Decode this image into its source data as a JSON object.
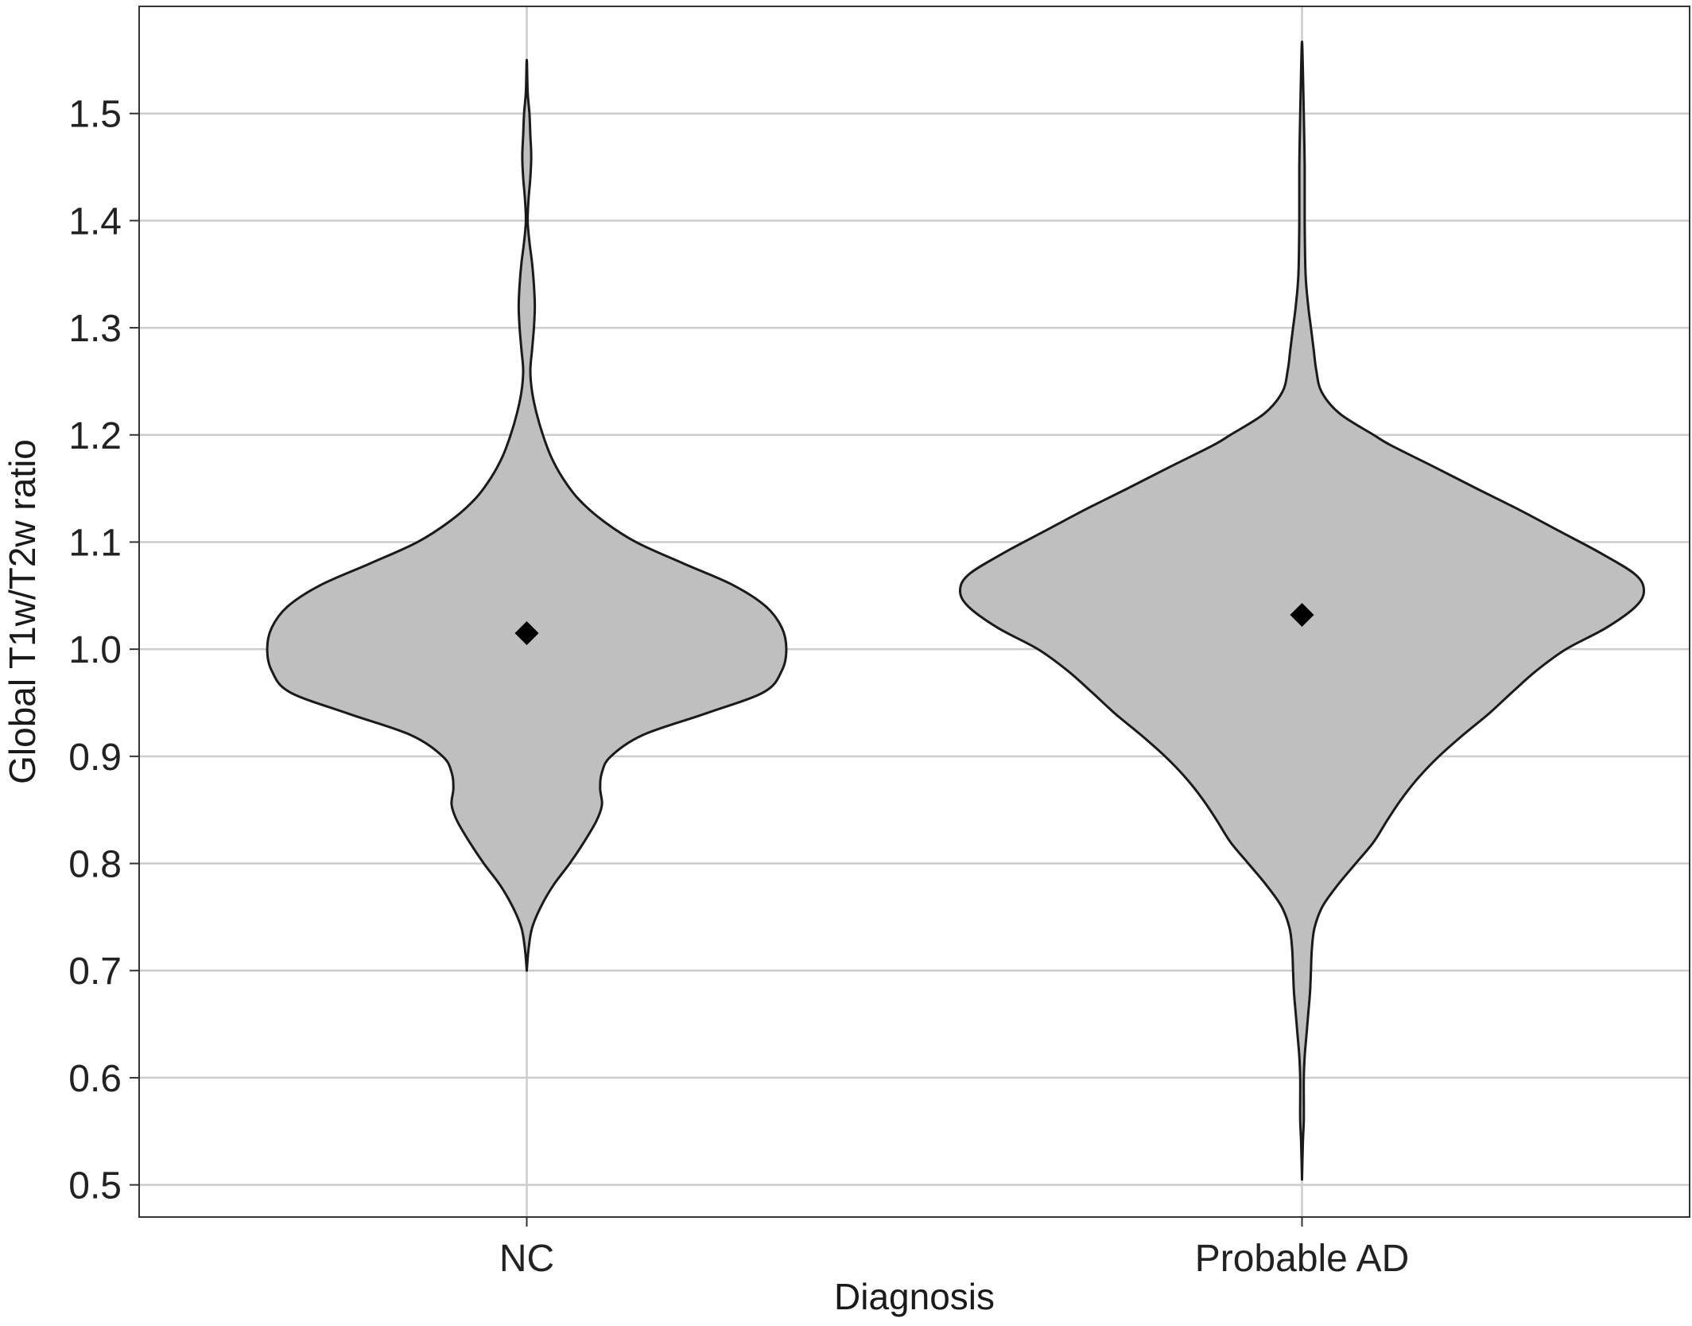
{
  "chart_data": {
    "type": "violin",
    "xlabel": "Diagnosis",
    "ylabel": "Global T1w/T2w ratio",
    "categories": [
      "NC",
      "Probable AD"
    ],
    "ylim": [
      0.47,
      1.6
    ],
    "yticks": [
      0.5,
      0.6,
      0.7,
      0.8,
      0.9,
      1.0,
      1.1,
      1.2,
      1.3,
      1.4,
      1.5
    ],
    "ytick_labels": [
      "0.5",
      "0.6",
      "0.7",
      "0.8",
      "0.9",
      "1.0",
      "1.1",
      "1.2",
      "1.3",
      "1.4",
      "1.5"
    ],
    "grid": true,
    "colors": {
      "violin_fill": "#bfbfbf",
      "violin_stroke": "#1a1a1a",
      "grid": "#cccccc",
      "frame": "#333333",
      "mean_marker": "#000000"
    },
    "series": [
      {
        "category": "NC",
        "mean": 1.015,
        "range": [
          0.7,
          1.55
        ],
        "density": [
          [
            0.7,
            0.0
          ],
          [
            0.72,
            0.002
          ],
          [
            0.74,
            0.006
          ],
          [
            0.76,
            0.016
          ],
          [
            0.78,
            0.03
          ],
          [
            0.8,
            0.048
          ],
          [
            0.82,
            0.064
          ],
          [
            0.84,
            0.078
          ],
          [
            0.855,
            0.084
          ],
          [
            0.87,
            0.082
          ],
          [
            0.885,
            0.084
          ],
          [
            0.9,
            0.094
          ],
          [
            0.92,
            0.13
          ],
          [
            0.94,
            0.2
          ],
          [
            0.96,
            0.265
          ],
          [
            0.98,
            0.285
          ],
          [
            1.0,
            0.29
          ],
          [
            1.02,
            0.285
          ],
          [
            1.04,
            0.267
          ],
          [
            1.06,
            0.23
          ],
          [
            1.08,
            0.175
          ],
          [
            1.1,
            0.122
          ],
          [
            1.12,
            0.085
          ],
          [
            1.14,
            0.058
          ],
          [
            1.16,
            0.04
          ],
          [
            1.18,
            0.027
          ],
          [
            1.2,
            0.018
          ],
          [
            1.22,
            0.011
          ],
          [
            1.24,
            0.006
          ],
          [
            1.26,
            0.004
          ],
          [
            1.28,
            0.006
          ],
          [
            1.3,
            0.008
          ],
          [
            1.32,
            0.009
          ],
          [
            1.34,
            0.008
          ],
          [
            1.36,
            0.006
          ],
          [
            1.38,
            0.003
          ],
          [
            1.4,
            0.001
          ],
          [
            1.42,
            0.002
          ],
          [
            1.44,
            0.004
          ],
          [
            1.46,
            0.005
          ],
          [
            1.48,
            0.004
          ],
          [
            1.5,
            0.003
          ],
          [
            1.52,
            0.001
          ],
          [
            1.55,
            0.0
          ]
        ]
      },
      {
        "category": "Probable AD",
        "mean": 1.032,
        "range": [
          0.505,
          1.567
        ],
        "density": [
          [
            0.505,
            0.0
          ],
          [
            0.54,
            0.001
          ],
          [
            0.56,
            0.002
          ],
          [
            0.58,
            0.002
          ],
          [
            0.6,
            0.002
          ],
          [
            0.62,
            0.003
          ],
          [
            0.64,
            0.005
          ],
          [
            0.66,
            0.007
          ],
          [
            0.68,
            0.009
          ],
          [
            0.7,
            0.01
          ],
          [
            0.72,
            0.011
          ],
          [
            0.74,
            0.014
          ],
          [
            0.76,
            0.023
          ],
          [
            0.78,
            0.04
          ],
          [
            0.8,
            0.06
          ],
          [
            0.82,
            0.08
          ],
          [
            0.84,
            0.095
          ],
          [
            0.86,
            0.111
          ],
          [
            0.88,
            0.13
          ],
          [
            0.9,
            0.153
          ],
          [
            0.92,
            0.18
          ],
          [
            0.94,
            0.209
          ],
          [
            0.96,
            0.235
          ],
          [
            0.98,
            0.262
          ],
          [
            1.0,
            0.295
          ],
          [
            1.02,
            0.34
          ],
          [
            1.04,
            0.373
          ],
          [
            1.055,
            0.382
          ],
          [
            1.07,
            0.372
          ],
          [
            1.09,
            0.333
          ],
          [
            1.11,
            0.288
          ],
          [
            1.13,
            0.243
          ],
          [
            1.15,
            0.195
          ],
          [
            1.17,
            0.148
          ],
          [
            1.19,
            0.1
          ],
          [
            1.2,
            0.08
          ],
          [
            1.22,
            0.042
          ],
          [
            1.24,
            0.022
          ],
          [
            1.26,
            0.016
          ],
          [
            1.28,
            0.013
          ],
          [
            1.3,
            0.01
          ],
          [
            1.32,
            0.007
          ],
          [
            1.35,
            0.004
          ],
          [
            1.4,
            0.003
          ],
          [
            1.45,
            0.003
          ],
          [
            1.5,
            0.002
          ],
          [
            1.54,
            0.001
          ],
          [
            1.567,
            0.0
          ]
        ]
      }
    ]
  }
}
